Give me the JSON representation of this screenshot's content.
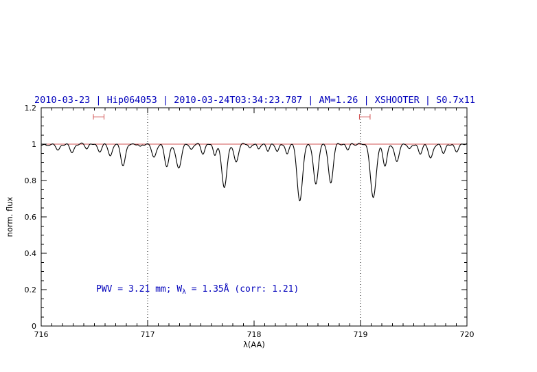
{
  "title": "2010-03-23 | Hip064053 | 2010-03-24T03:34:23.787 | AM=1.26 | XSHOOTER | S0.7x11",
  "annotation": {
    "prefix": "PWV = 3.21 mm; W",
    "sub": "λ",
    "suffix": " = 1.35Å (corr: 1.21)"
  },
  "colors": {
    "title": "#0000bb",
    "annotation": "#0000bb",
    "continuum": "#d05050",
    "marker": "#d05050",
    "spectrum": "#000000",
    "axis": "#000000"
  },
  "chart_data": {
    "type": "line",
    "title": "2010-03-23 | Hip064053 | 2010-03-24T03:34:23.787 | AM=1.26 | XSHOOTER | S0.7x11",
    "xlabel": "λ(AA)",
    "ylabel": "norm. flux",
    "xlim": [
      716,
      720
    ],
    "ylim": [
      0,
      1.2
    ],
    "xticks": [
      716,
      717,
      718,
      719,
      720
    ],
    "xtick_labels": [
      "716",
      "717",
      "718",
      "719",
      "720"
    ],
    "yticks": [
      0,
      0.2,
      0.4,
      0.6,
      0.8,
      1,
      1.2
    ],
    "ytick_labels": [
      "0",
      "0.2",
      "0.4",
      "0.6",
      "0.8",
      "1",
      "1.2"
    ],
    "x_minor_step": 0.1,
    "y_minor_step": 0.05,
    "grid": false,
    "continuum_level": 1.0,
    "dotted_vlines": [
      717,
      719
    ],
    "range_markers": [
      {
        "x1": 716.49,
        "x2": 716.59,
        "y": 1.15
      },
      {
        "x1": 718.99,
        "x2": 719.09,
        "y": 1.15
      }
    ],
    "x_step": 0.004,
    "absorption_lines": [
      {
        "center": 716.05,
        "depth": 0.012,
        "sigma": 0.015
      },
      {
        "center": 716.16,
        "depth": 0.035,
        "sigma": 0.018
      },
      {
        "center": 716.29,
        "depth": 0.045,
        "sigma": 0.02
      },
      {
        "center": 716.43,
        "depth": 0.022,
        "sigma": 0.015
      },
      {
        "center": 716.55,
        "depth": 0.038,
        "sigma": 0.02
      },
      {
        "center": 716.65,
        "depth": 0.065,
        "sigma": 0.018
      },
      {
        "center": 716.77,
        "depth": 0.115,
        "sigma": 0.022
      },
      {
        "center": 716.93,
        "depth": 0.018,
        "sigma": 0.012
      },
      {
        "center": 717.06,
        "depth": 0.075,
        "sigma": 0.02
      },
      {
        "center": 717.18,
        "depth": 0.12,
        "sigma": 0.022
      },
      {
        "center": 717.29,
        "depth": 0.13,
        "sigma": 0.025
      },
      {
        "center": 717.41,
        "depth": 0.03,
        "sigma": 0.015
      },
      {
        "center": 717.52,
        "depth": 0.05,
        "sigma": 0.018
      },
      {
        "center": 717.63,
        "depth": 0.06,
        "sigma": 0.015
      },
      {
        "center": 717.72,
        "depth": 0.235,
        "sigma": 0.025
      },
      {
        "center": 717.83,
        "depth": 0.1,
        "sigma": 0.02
      },
      {
        "center": 717.96,
        "depth": 0.022,
        "sigma": 0.012
      },
      {
        "center": 718.04,
        "depth": 0.028,
        "sigma": 0.013
      },
      {
        "center": 718.13,
        "depth": 0.038,
        "sigma": 0.015
      },
      {
        "center": 718.22,
        "depth": 0.042,
        "sigma": 0.015
      },
      {
        "center": 718.31,
        "depth": 0.055,
        "sigma": 0.015
      },
      {
        "center": 718.43,
        "depth": 0.315,
        "sigma": 0.025
      },
      {
        "center": 718.58,
        "depth": 0.225,
        "sigma": 0.022
      },
      {
        "center": 718.72,
        "depth": 0.215,
        "sigma": 0.022
      },
      {
        "center": 718.88,
        "depth": 0.03,
        "sigma": 0.015
      },
      {
        "center": 719.12,
        "depth": 0.3,
        "sigma": 0.026
      },
      {
        "center": 719.23,
        "depth": 0.12,
        "sigma": 0.02
      },
      {
        "center": 719.34,
        "depth": 0.1,
        "sigma": 0.02
      },
      {
        "center": 719.46,
        "depth": 0.03,
        "sigma": 0.015
      },
      {
        "center": 719.56,
        "depth": 0.055,
        "sigma": 0.018
      },
      {
        "center": 719.66,
        "depth": 0.08,
        "sigma": 0.02
      },
      {
        "center": 719.78,
        "depth": 0.05,
        "sigma": 0.018
      },
      {
        "center": 719.9,
        "depth": 0.042,
        "sigma": 0.018
      }
    ]
  }
}
